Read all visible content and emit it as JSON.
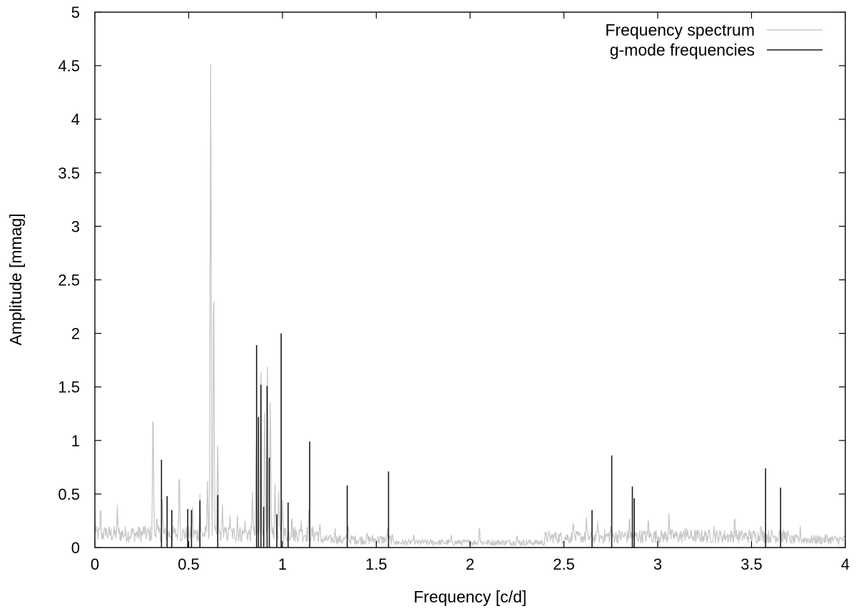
{
  "chart_data": {
    "type": "line",
    "xlabel": "Frequency [c/d]",
    "ylabel": "Amplitude [mmag]",
    "xlim": [
      0,
      4
    ],
    "ylim": [
      0,
      5
    ],
    "x_ticks": [
      "0",
      "0.5",
      "1",
      "1.5",
      "2",
      "2.5",
      "3",
      "3.5",
      "4"
    ],
    "y_ticks": [
      "0",
      "0.5",
      "1",
      "1.5",
      "2",
      "2.5",
      "3",
      "3.5",
      "4",
      "4.5",
      "5"
    ],
    "legend_position": "top-right",
    "series": [
      {
        "name": "Frequency spectrum",
        "style": "line",
        "color": "#c8c8c8",
        "baseline_note_free": true,
        "peaks": [
          [
            0.0,
            0.3
          ],
          [
            0.03,
            0.39
          ],
          [
            0.06,
            0.18
          ],
          [
            0.12,
            0.4
          ],
          [
            0.2,
            0.18
          ],
          [
            0.26,
            0.2
          ],
          [
            0.31,
            1.33
          ],
          [
            0.33,
            0.3
          ],
          [
            0.36,
            0.45
          ],
          [
            0.45,
            0.72
          ],
          [
            0.52,
            0.38
          ],
          [
            0.56,
            0.5
          ],
          [
            0.6,
            0.62
          ],
          [
            0.617,
            4.52
          ],
          [
            0.633,
            2.55
          ],
          [
            0.655,
            0.98
          ],
          [
            0.68,
            0.4
          ],
          [
            0.72,
            0.3
          ],
          [
            0.76,
            0.3
          ],
          [
            0.8,
            0.25
          ],
          [
            0.84,
            0.52
          ],
          [
            0.86,
            0.95
          ],
          [
            0.885,
            1.69
          ],
          [
            0.905,
            1.3
          ],
          [
            0.92,
            1.69
          ],
          [
            0.935,
            1.4
          ],
          [
            0.96,
            0.6
          ],
          [
            0.98,
            0.53
          ],
          [
            1.0,
            0.45
          ],
          [
            1.05,
            0.3
          ],
          [
            1.1,
            0.25
          ],
          [
            1.14,
            0.35
          ],
          [
            1.2,
            0.22
          ],
          [
            1.28,
            0.18
          ],
          [
            1.35,
            0.22
          ],
          [
            1.45,
            0.15
          ],
          [
            1.56,
            0.18
          ],
          [
            1.7,
            0.12
          ],
          [
            1.9,
            0.12
          ],
          [
            2.05,
            0.2
          ],
          [
            2.25,
            0.12
          ],
          [
            2.45,
            0.15
          ],
          [
            2.55,
            0.25
          ],
          [
            2.62,
            0.28
          ],
          [
            2.68,
            0.25
          ],
          [
            2.75,
            0.22
          ],
          [
            2.85,
            0.3
          ],
          [
            2.95,
            0.28
          ],
          [
            3.06,
            0.32
          ],
          [
            3.15,
            0.2
          ],
          [
            3.3,
            0.2
          ],
          [
            3.41,
            0.3
          ],
          [
            3.55,
            0.22
          ],
          [
            3.65,
            0.18
          ],
          [
            3.76,
            0.2
          ],
          [
            3.9,
            0.12
          ],
          [
            4.0,
            0.1
          ]
        ]
      },
      {
        "name": "g-mode frequencies",
        "style": "impulses",
        "color": "#1a1a1a",
        "x": [
          0.355,
          0.385,
          0.41,
          0.495,
          0.515,
          0.56,
          0.655,
          0.862,
          0.872,
          0.885,
          0.9,
          0.918,
          0.93,
          0.97,
          0.993,
          1.03,
          1.145,
          1.345,
          1.565,
          2.65,
          2.755,
          2.865,
          2.875,
          3.575,
          3.655
        ],
        "values": [
          0.82,
          0.48,
          0.35,
          0.36,
          0.35,
          0.44,
          0.49,
          1.89,
          1.22,
          1.52,
          0.38,
          1.51,
          0.84,
          0.31,
          2.0,
          0.42,
          0.99,
          0.58,
          0.71,
          0.35,
          0.86,
          0.57,
          0.46,
          0.74,
          0.56
        ]
      }
    ]
  }
}
